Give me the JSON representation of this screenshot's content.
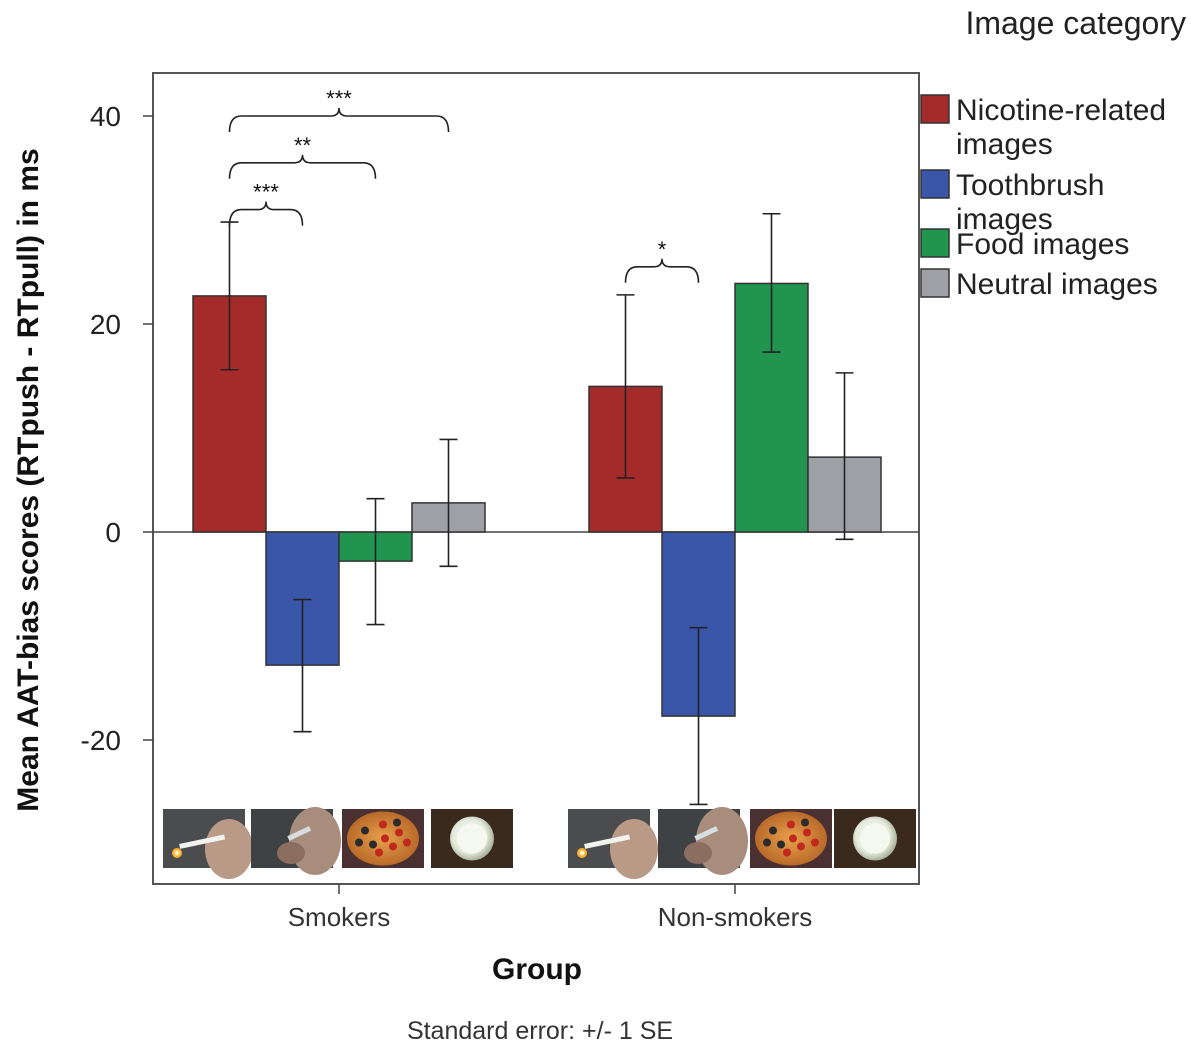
{
  "chart_data": {
    "type": "bar",
    "title": "",
    "xlabel": "Group",
    "ylabel": "Mean AAT-bias scores (RTpush - RTpull) in ms",
    "ylim": [
      -33,
      44
    ],
    "yticks": [
      -20,
      0,
      20,
      40
    ],
    "categories": [
      "Smokers",
      "Non-smokers"
    ],
    "legend": {
      "title": "Image category",
      "placement": "right"
    },
    "series": [
      {
        "name": "Nicotine-related images",
        "color": "#A52A2A",
        "values": [
          22.7,
          14.0
        ],
        "se_low": [
          15.6,
          5.2
        ],
        "se_high": [
          29.8,
          22.8
        ]
      },
      {
        "name": "Toothbrush images",
        "color": "#3A56A8",
        "values": [
          -12.8,
          -17.7
        ],
        "se_low": [
          -19.2,
          -26.2
        ],
        "se_high": [
          -6.5,
          -9.2
        ]
      },
      {
        "name": "Food images",
        "color": "#21944F",
        "values": [
          -2.8,
          23.9
        ],
        "se_low": [
          -8.9,
          17.3
        ],
        "se_high": [
          3.2,
          30.6
        ]
      },
      {
        "name": "Neutral images",
        "color": "#9FA0A5",
        "values": [
          2.8,
          7.2
        ],
        "se_low": [
          -3.3,
          -0.7
        ],
        "se_high": [
          8.9,
          15.3
        ]
      }
    ],
    "significance": [
      {
        "group": 0,
        "from": 0,
        "to": 1,
        "y": 31,
        "label": "***"
      },
      {
        "group": 0,
        "from": 0,
        "to": 2,
        "y": 35.5,
        "label": "**"
      },
      {
        "group": 0,
        "from": 0,
        "to": 3,
        "y": 40,
        "label": "***"
      },
      {
        "group": 1,
        "from": 0,
        "to": 1,
        "y": 25.5,
        "label": "*"
      }
    ],
    "thumbnails": [
      "cigarette",
      "toothbrush",
      "pizza",
      "bowl"
    ],
    "footnote": "Standard error: +/- 1 SE"
  }
}
